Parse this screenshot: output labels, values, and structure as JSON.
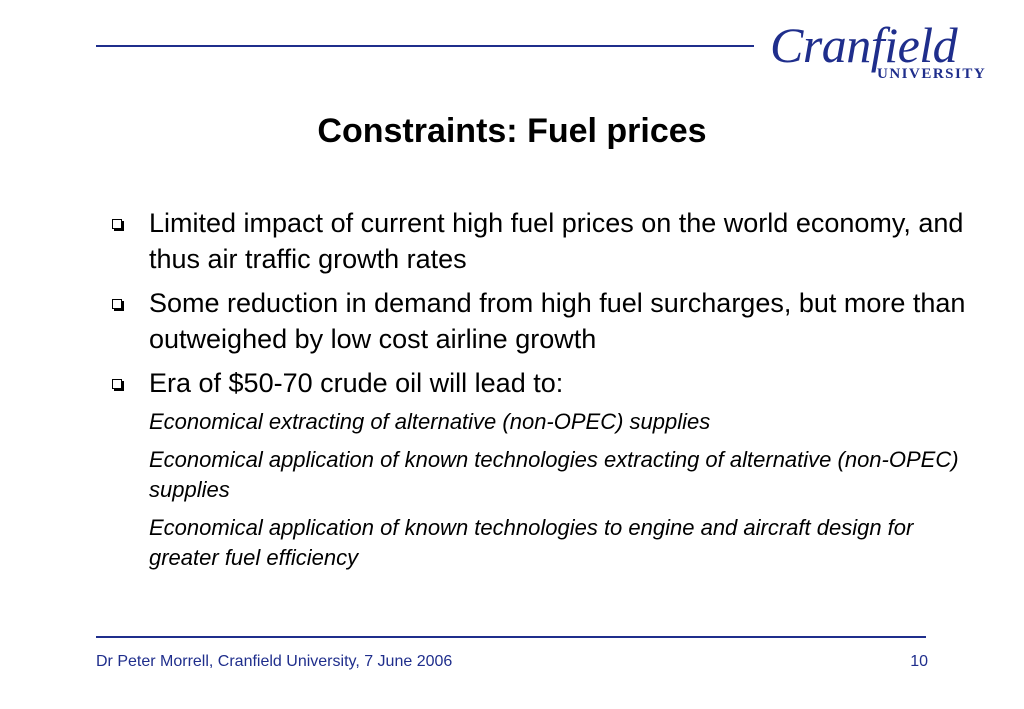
{
  "header": {
    "logo_word": "Cranfield",
    "logo_sub": "UNIVERSITY"
  },
  "slide": {
    "title": "Constraints: Fuel prices",
    "bullets": [
      "Limited impact of current high fuel prices on the world economy, and thus air traffic growth rates",
      "Some reduction in demand from high fuel surcharges, but more than outweighed by low cost airline growth",
      "Era of $50-70 crude oil will lead to:"
    ],
    "sub_items": [
      "Economical extracting of alternative (non-OPEC) supplies",
      "Economical application of known technologies extracting of alternative (non-OPEC) supplies",
      "Economical application of known technologies to engine and aircraft design for greater fuel efficiency"
    ]
  },
  "footer": {
    "author_line": "Dr Peter Morrell, Cranfield University, 7 June 2006",
    "page_number": "10"
  },
  "colors": {
    "brand_blue": "#1f2e8c"
  }
}
